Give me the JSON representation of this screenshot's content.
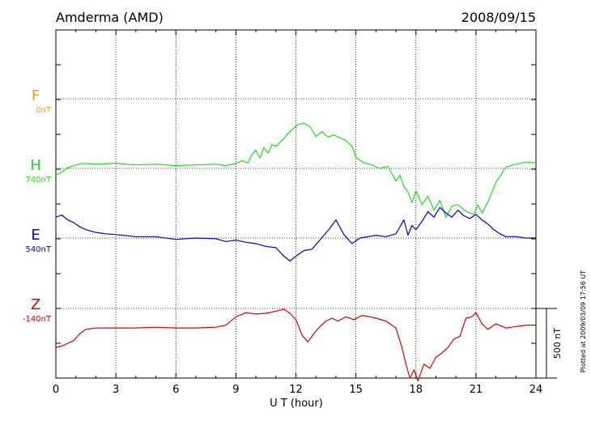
{
  "chart_data": {
    "type": "line",
    "title": "Amderma (AMD)",
    "date": "2008/09/15",
    "xlabel": "U T (hour)",
    "xlim": [
      0,
      24
    ],
    "xticks": [
      "0",
      "3",
      "6",
      "9",
      "12",
      "15",
      "18",
      "21",
      "24"
    ],
    "scale_bar": "500 nT",
    "plotted_note": "Plotted at 2009/03/09 17:56 UT",
    "series": [
      {
        "name": "F",
        "baseline": "0nT",
        "color": "#f0a000",
        "x": [],
        "y": []
      },
      {
        "name": "H",
        "baseline": "740nT",
        "color": "#22dd22",
        "x": [
          0,
          0.3,
          0.6,
          1.0,
          1.3,
          1.6,
          2.0,
          3.0,
          3.5,
          4.0,
          5.0,
          6.0,
          7.0,
          8.0,
          8.5,
          9.0,
          9.3,
          9.6,
          9.8,
          10.0,
          10.2,
          10.4,
          10.6,
          10.8,
          11.0,
          11.3,
          11.6,
          11.9,
          12.1,
          12.4,
          12.7,
          13.0,
          13.3,
          13.6,
          13.9,
          14.2,
          14.5,
          14.8,
          15.0,
          15.4,
          15.8,
          16.2,
          16.6,
          17.0,
          17.2,
          17.4,
          17.6,
          17.8,
          18.0,
          18.3,
          18.6,
          18.9,
          19.2,
          19.5,
          19.8,
          20.1,
          20.4,
          20.7,
          20.9,
          21.1,
          21.3,
          21.6,
          22.0,
          22.5,
          23.0,
          23.5,
          24.0
        ],
        "y": [
          -50,
          -25,
          5,
          25,
          35,
          35,
          30,
          38,
          30,
          25,
          30,
          20,
          25,
          30,
          20,
          35,
          55,
          40,
          100,
          130,
          75,
          150,
          110,
          170,
          160,
          200,
          250,
          290,
          315,
          325,
          300,
          230,
          265,
          225,
          240,
          220,
          200,
          160,
          80,
          40,
          25,
          0,
          15,
          -90,
          -50,
          -130,
          -170,
          -245,
          -160,
          -260,
          -200,
          -300,
          -230,
          -350,
          -270,
          -260,
          -300,
          -320,
          -330,
          -260,
          -320,
          -240,
          -100,
          10,
          30,
          45,
          40
        ]
      },
      {
        "name": "E",
        "baseline": "540nT",
        "color": "#0000dd",
        "x": [
          0,
          0.3,
          0.6,
          0.9,
          1.2,
          1.5,
          2.0,
          2.5,
          3.0,
          4.0,
          5.0,
          6.0,
          7.0,
          8.0,
          8.5,
          9.0,
          9.5,
          10.0,
          10.5,
          11.0,
          11.4,
          11.7,
          12.0,
          12.4,
          12.8,
          13.1,
          13.4,
          13.7,
          14.0,
          14.4,
          14.8,
          15.2,
          15.6,
          16.0,
          16.5,
          17.0,
          17.2,
          17.4,
          17.6,
          17.8,
          18.0,
          18.3,
          18.6,
          18.9,
          19.2,
          19.5,
          19.8,
          20.1,
          20.4,
          20.7,
          21.0,
          21.3,
          21.6,
          21.9,
          22.2,
          22.5,
          23.0,
          23.5,
          24.0
        ],
        "y": [
          150,
          165,
          130,
          110,
          80,
          60,
          40,
          30,
          25,
          10,
          10,
          -10,
          0,
          -5,
          -25,
          -15,
          -30,
          -40,
          -60,
          -70,
          -130,
          -165,
          -130,
          -90,
          -80,
          -30,
          20,
          70,
          130,
          25,
          -40,
          0,
          10,
          20,
          10,
          30,
          80,
          130,
          20,
          90,
          60,
          120,
          190,
          150,
          220,
          180,
          150,
          200,
          160,
          140,
          170,
          130,
          100,
          60,
          30,
          10,
          10,
          0,
          0
        ]
      },
      {
        "name": "Z",
        "baseline": "-140nT",
        "color": "#dd0000",
        "x": [
          0,
          0.3,
          0.6,
          0.9,
          1.2,
          1.5,
          2.0,
          3.0,
          4.0,
          5.0,
          6.0,
          7.0,
          8.0,
          8.5,
          9.0,
          9.5,
          10.0,
          10.5,
          11.0,
          11.4,
          11.7,
          12.0,
          12.3,
          12.6,
          12.9,
          13.2,
          13.5,
          13.8,
          14.1,
          14.5,
          14.9,
          15.3,
          15.7,
          16.0,
          16.5,
          17.0,
          17.3,
          17.5,
          17.7,
          17.9,
          18.1,
          18.4,
          18.7,
          19.0,
          19.3,
          19.6,
          19.9,
          20.2,
          20.5,
          20.8,
          21.0,
          21.3,
          21.6,
          22.0,
          22.5,
          23.0,
          23.5,
          24.0
        ],
        "y": [
          -280,
          -270,
          -250,
          -230,
          -180,
          -150,
          -140,
          -140,
          -140,
          -135,
          -140,
          -140,
          -135,
          -120,
          -60,
          -30,
          -40,
          -35,
          -20,
          -5,
          -35,
          -80,
          -190,
          -240,
          -180,
          -130,
          -90,
          -70,
          -90,
          -60,
          -80,
          -50,
          -60,
          -70,
          -90,
          -140,
          -280,
          -400,
          -500,
          -440,
          -520,
          -400,
          -430,
          -350,
          -320,
          -280,
          -220,
          -200,
          -70,
          -60,
          -30,
          -110,
          -150,
          -110,
          -140,
          -130,
          -120,
          -120
        ]
      }
    ]
  }
}
